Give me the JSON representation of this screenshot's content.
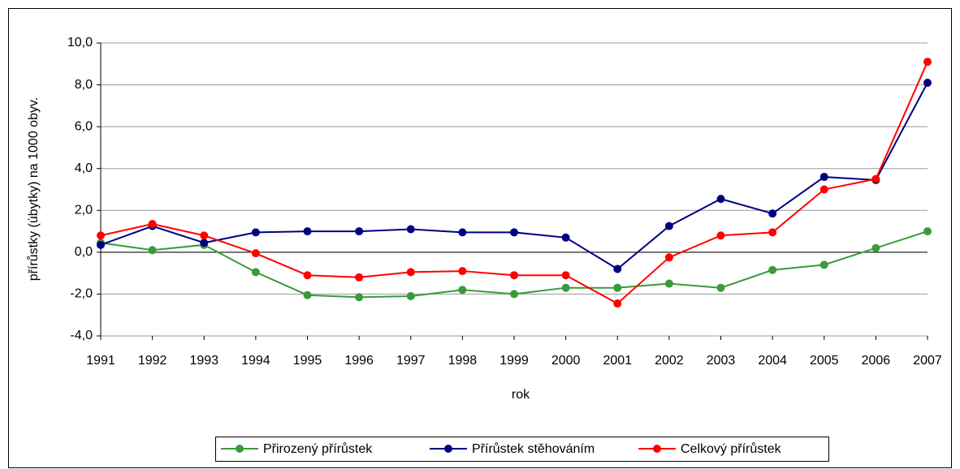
{
  "chart_data": {
    "type": "line",
    "x_label": "rok",
    "y_label": "přírůstky (úbytky) na 1000 obyv.",
    "categories": [
      "1991",
      "1992",
      "1993",
      "1994",
      "1995",
      "1996",
      "1997",
      "1998",
      "1999",
      "2000",
      "2001",
      "2002",
      "2003",
      "2004",
      "2005",
      "2006",
      "2007"
    ],
    "series": [
      {
        "name": "Přirozený přírůstek",
        "color": "#3a9a3a",
        "values": [
          0.45,
          0.1,
          0.35,
          -0.95,
          -2.05,
          -2.15,
          -2.1,
          -1.8,
          -2.0,
          -1.7,
          -1.7,
          -1.5,
          -1.7,
          -0.85,
          -0.6,
          0.2,
          1.0
        ]
      },
      {
        "name": "Přírůstek stěhováním",
        "color": "#000080",
        "values": [
          0.35,
          1.25,
          0.45,
          0.95,
          1.0,
          1.0,
          1.1,
          0.95,
          0.95,
          0.7,
          -0.8,
          1.25,
          2.55,
          1.85,
          3.6,
          3.45,
          8.1
        ]
      },
      {
        "name": "Celkový přírůstek",
        "color": "#ff0000",
        "values": [
          0.8,
          1.35,
          0.8,
          -0.05,
          -1.1,
          -1.2,
          -0.95,
          -0.9,
          -1.1,
          -1.1,
          -2.45,
          -0.25,
          0.8,
          0.95,
          3.0,
          3.5,
          9.1
        ]
      }
    ],
    "ylim": [
      -4,
      10
    ],
    "yticks": [
      {
        "value": -4,
        "label": "-4,0"
      },
      {
        "value": -2,
        "label": "-2,0"
      },
      {
        "value": 0,
        "label": "0,0"
      },
      {
        "value": 2,
        "label": "2,0"
      },
      {
        "value": 4,
        "label": "4,0"
      },
      {
        "value": 6,
        "label": "6,0"
      },
      {
        "value": 8,
        "label": "8,0"
      },
      {
        "value": 10,
        "label": "10,0"
      }
    ],
    "grid": true,
    "legend": "bottom"
  }
}
